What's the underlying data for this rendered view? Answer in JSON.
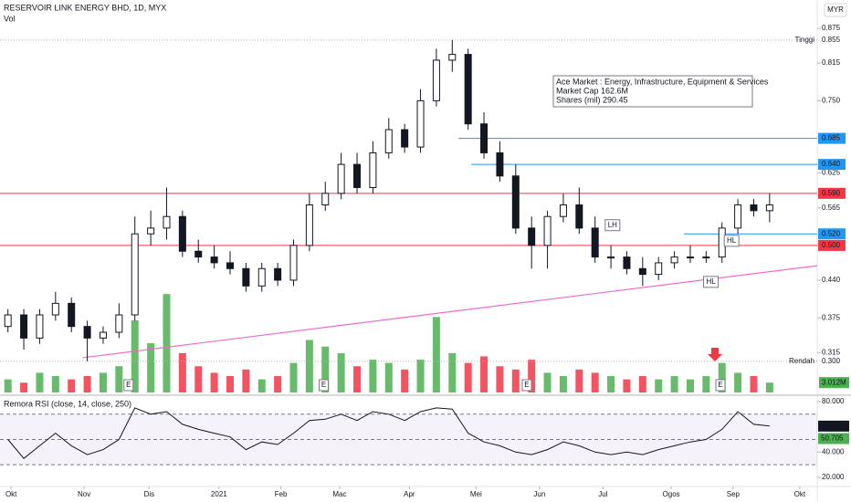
{
  "chart_data": {
    "type": "candlestick",
    "title": "RESERVOIR LINK ENERGY BHD, 1D, MYX",
    "volume_title": "Vol",
    "currency": "MYR",
    "info_lines": [
      "Ace Market : Energy, Infrastructure, Equipment & Services",
      "Market Cap 162.6M",
      "Shares (mil) 290.45"
    ],
    "xlim": [
      -0.5,
      51
    ],
    "xticks": [
      {
        "value": 0.2,
        "label": "Okt"
      },
      {
        "value": 4.8,
        "label": "Nov"
      },
      {
        "value": 8.9,
        "label": "Dis"
      },
      {
        "value": 13.3,
        "label": "2021"
      },
      {
        "value": 17.2,
        "label": "Feb"
      },
      {
        "value": 20.9,
        "label": "Mac"
      },
      {
        "value": 25.3,
        "label": "Apr"
      },
      {
        "value": 29.5,
        "label": "Mei"
      },
      {
        "value": 33.5,
        "label": "Jun"
      },
      {
        "value": 37.5,
        "label": "Jul"
      },
      {
        "value": 41.8,
        "label": "Ogos"
      },
      {
        "value": 45.7,
        "label": "Sep"
      },
      {
        "value": 49.9,
        "label": "Okt"
      }
    ],
    "ylim": [
      0.246,
      0.924
    ],
    "yticks": [
      0.875,
      0.815,
      {
        "value": 0.75,
        "label": "0.750"
      },
      0.625,
      0.565,
      {
        "value": 0.44,
        "label": "0.440"
      },
      0.375,
      0.315
    ],
    "up_color": "#26a69a",
    "down_color": "#ef5350",
    "open": [
      0.36,
      0.38,
      0.34,
      0.38,
      0.4,
      0.36,
      0.34,
      0.35,
      0.38,
      0.52,
      0.53,
      0.55,
      0.49,
      0.48,
      0.47,
      0.46,
      0.43,
      0.46,
      0.44,
      0.5,
      0.57,
      0.59,
      0.64,
      0.6,
      0.66,
      0.7,
      0.67,
      0.75,
      0.82,
      0.83,
      0.71,
      0.66,
      0.62,
      0.53,
      0.5,
      0.55,
      0.57,
      0.53,
      0.48,
      0.48,
      0.46,
      0.45,
      0.47,
      0.48,
      0.48,
      0.48,
      0.53,
      0.57,
      0.56
    ],
    "high": [
      0.39,
      0.39,
      0.39,
      0.42,
      0.41,
      0.37,
      0.36,
      0.4,
      0.55,
      0.56,
      0.6,
      0.56,
      0.51,
      0.5,
      0.49,
      0.47,
      0.47,
      0.47,
      0.51,
      0.59,
      0.61,
      0.66,
      0.66,
      0.68,
      0.72,
      0.71,
      0.77,
      0.84,
      0.855,
      0.84,
      0.73,
      0.68,
      0.64,
      0.55,
      0.56,
      0.59,
      0.6,
      0.55,
      0.5,
      0.49,
      0.48,
      0.48,
      0.49,
      0.5,
      0.49,
      0.54,
      0.58,
      0.58,
      0.59
    ],
    "low": [
      0.35,
      0.32,
      0.33,
      0.37,
      0.35,
      0.3,
      0.33,
      0.34,
      0.37,
      0.5,
      0.51,
      0.48,
      0.47,
      0.46,
      0.45,
      0.42,
      0.42,
      0.43,
      0.43,
      0.49,
      0.56,
      0.58,
      0.59,
      0.59,
      0.65,
      0.66,
      0.66,
      0.74,
      0.8,
      0.7,
      0.65,
      0.61,
      0.52,
      0.46,
      0.46,
      0.54,
      0.52,
      0.47,
      0.46,
      0.45,
      0.43,
      0.44,
      0.46,
      0.47,
      0.47,
      0.47,
      0.52,
      0.55,
      0.54
    ],
    "close": [
      0.38,
      0.34,
      0.38,
      0.4,
      0.36,
      0.34,
      0.35,
      0.38,
      0.52,
      0.53,
      0.55,
      0.49,
      0.48,
      0.47,
      0.46,
      0.43,
      0.46,
      0.44,
      0.5,
      0.57,
      0.59,
      0.64,
      0.6,
      0.66,
      0.7,
      0.67,
      0.75,
      0.82,
      0.83,
      0.71,
      0.66,
      0.62,
      0.53,
      0.5,
      0.55,
      0.57,
      0.53,
      0.48,
      0.48,
      0.46,
      0.45,
      0.47,
      0.48,
      0.48,
      0.48,
      0.53,
      0.57,
      0.56,
      0.57
    ],
    "volume": [
      4,
      3,
      6,
      5,
      4,
      5,
      6,
      8,
      22,
      15,
      30,
      12,
      8,
      6,
      5,
      7,
      4,
      5,
      9,
      16,
      14,
      12,
      8,
      10,
      9,
      7,
      10,
      23,
      12,
      9,
      11,
      8,
      7,
      10,
      6,
      5,
      7,
      6,
      5,
      4,
      5,
      4,
      5,
      4,
      5,
      9,
      6,
      5,
      3.012
    ],
    "volume_ylim": [
      0,
      32
    ],
    "volume_last_label": "3.012M",
    "levels": [
      {
        "value": 0.855,
        "label": "0.855",
        "note": "Tinggi",
        "color": "#b2b5be",
        "from": -0.5
      },
      {
        "value": 0.685,
        "label": "0.685",
        "color": "#2196f3",
        "from": 28.4
      },
      {
        "value": 0.64,
        "label": "0.640",
        "color": "#2196f3",
        "from": 29.2
      },
      {
        "value": 0.59,
        "label": "0.590",
        "color": "#f23645",
        "from": -0.5
      },
      {
        "value": 0.52,
        "label": "0.520",
        "color": "#2196f3",
        "from": 42.6
      },
      {
        "value": 0.5,
        "label": "0.500",
        "color": "#f23645",
        "from": -0.5
      },
      {
        "value": 0.3,
        "label": "0.300",
        "note": "Rendah",
        "color": "#b2b5be",
        "from": -0.5
      }
    ],
    "trendline": {
      "x": [
        4.7,
        51
      ],
      "y": [
        0.306,
        0.465
      ],
      "color": "#f06bd0"
    },
    "annotations": [
      {
        "text": "LH",
        "x": 38.1,
        "y": 0.535
      },
      {
        "text": "HL",
        "x": 45.6,
        "y": 0.508
      },
      {
        "text": "HL",
        "x": 44.3,
        "y": 0.437
      }
    ],
    "earnings_x": [
      7.6,
      19.9,
      32.7,
      44.9
    ],
    "earnings_label": "E",
    "rsi": {
      "title": "Remora RSI (close, 14, close, 250)",
      "color": "#131722",
      "ylim": [
        12.8,
        85
      ],
      "yticks": [
        {
          "value": 80,
          "label": "80.000"
        },
        {
          "value": 40,
          "label": "40.000"
        },
        {
          "value": 20,
          "label": "20.000"
        }
      ],
      "bands": [
        70,
        50,
        30
      ],
      "values": [
        50,
        35,
        45,
        55,
        45,
        38,
        42,
        50,
        75,
        70,
        72,
        62,
        58,
        55,
        52,
        42,
        48,
        46,
        55,
        65,
        66,
        70,
        65,
        72,
        70,
        65,
        72,
        75,
        74,
        55,
        48,
        45,
        40,
        38,
        42,
        48,
        45,
        40,
        38,
        40,
        38,
        42,
        45,
        48,
        50,
        58,
        72,
        62,
        60.564
      ],
      "markers": [
        {
          "value": 60.564,
          "label": "60.564",
          "color": "#131722"
        },
        {
          "value": 50.705,
          "label": "50.705",
          "color": "#4caf50"
        }
      ]
    }
  }
}
